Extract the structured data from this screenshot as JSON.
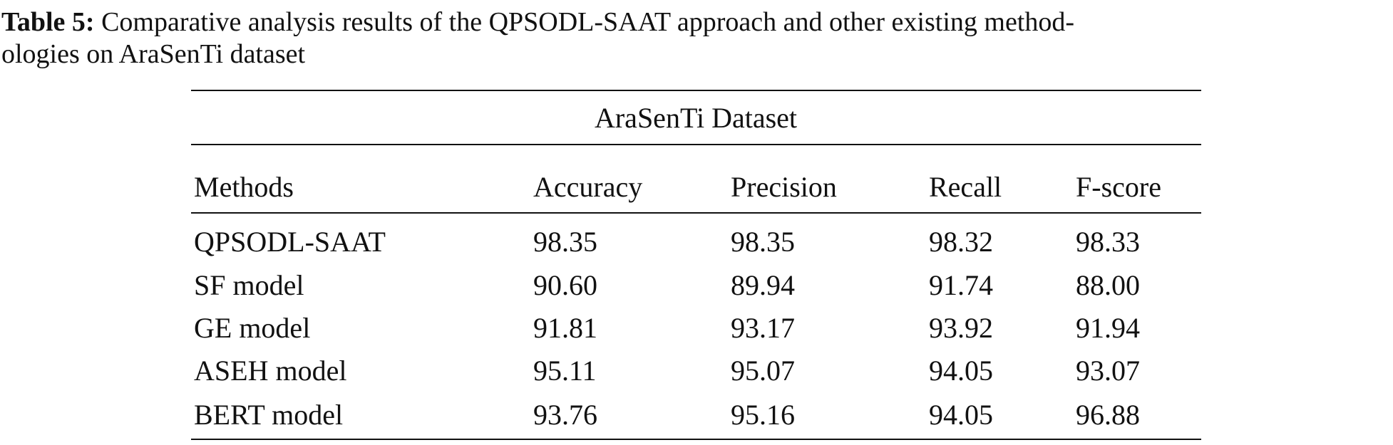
{
  "caption": {
    "label": "Table 5:",
    "lines": [
      "Comparative analysis results of the QPSODL-SAAT approach and other existing method-",
      "ologies on AraSenTi dataset"
    ]
  },
  "table": {
    "group_header": "AraSenTi Dataset",
    "columns": [
      "Methods",
      "Accuracy",
      "Precision",
      "Recall",
      "F-score"
    ],
    "rows": [
      [
        "QPSODL-SAAT",
        "98.35",
        "98.35",
        "98.32",
        "98.33"
      ],
      [
        "SF model",
        "90.60",
        "89.94",
        "91.74",
        "88.00"
      ],
      [
        "GE model",
        "91.81",
        "93.17",
        "93.92",
        "91.94"
      ],
      [
        "ASEH model",
        "95.11",
        "95.07",
        "94.05",
        "93.07"
      ],
      [
        "BERT model",
        "93.76",
        "95.16",
        "94.05",
        "96.88"
      ]
    ]
  }
}
